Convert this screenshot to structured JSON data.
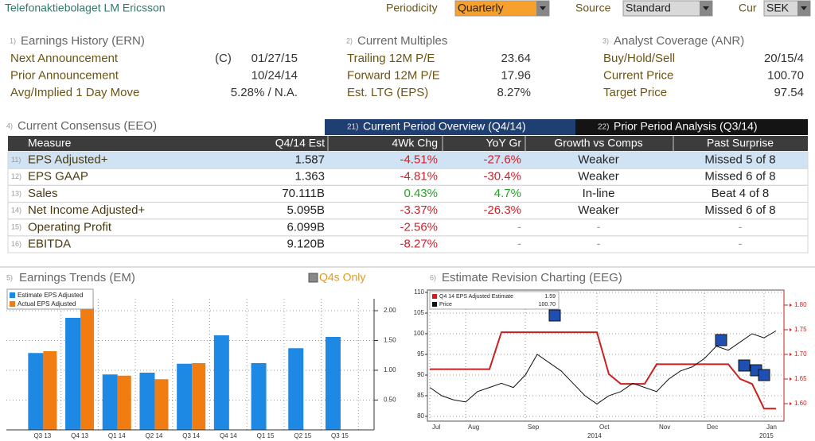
{
  "header": {
    "title": "Telefonaktiebolaget LM Ericsson",
    "controls": [
      {
        "label": "Periodicity",
        "value": "Quarterly"
      },
      {
        "label": "Source",
        "value": "Standard"
      },
      {
        "label": "Cur",
        "value": "SEK"
      }
    ]
  },
  "sections": [
    {
      "number": "1)",
      "title": "Earnings History (ERN)",
      "rows": [
        {
          "label": "Next Announcement",
          "prefix": "(C)",
          "value": "01/27/15"
        },
        {
          "label": "Prior Announcement",
          "value": "10/24/14"
        },
        {
          "label": "Avg/Implied 1 Day Move",
          "value": "5.28% / N.A."
        }
      ]
    },
    {
      "number": "2)",
      "title": "Current Multiples",
      "rows": [
        {
          "label": "Trailing 12M P/E",
          "value": "23.64"
        },
        {
          "label": "Forward 12M P/E",
          "value": "17.96"
        },
        {
          "label": "Est. LTG (EPS)",
          "value": "8.27%"
        }
      ]
    },
    {
      "number": "3)",
      "title": "Analyst Coverage (ANR)",
      "rows": [
        {
          "label": "Buy/Hold/Sell",
          "value": "20/15/4"
        },
        {
          "label": "Current Price",
          "value": "100.70"
        },
        {
          "label": "Target Price",
          "value": "97.54"
        }
      ]
    }
  ],
  "consensus": {
    "number": "4)",
    "title": "Current Consensus (EEO)",
    "tabs": [
      {
        "number": "21)",
        "label": "Current Period Overview (Q4/14)"
      },
      {
        "number": "22)",
        "label": "Prior Period Analysis (Q3/14)"
      }
    ],
    "columns": [
      "Measure",
      "Q4/14 Est",
      "4Wk Chg",
      "YoY Gr",
      "Growth vs Comps",
      "Past Surprise"
    ],
    "rows": [
      {
        "number": "11)",
        "cells": [
          "EPS Adjusted+",
          "1.587",
          "-4.51%",
          "-27.6%",
          "Weaker",
          "Missed 5 of 8"
        ]
      },
      {
        "number": "12)",
        "cells": [
          "EPS GAAP",
          "1.363",
          "-4.81%",
          "-30.4%",
          "Weaker",
          "Missed 6 of 8"
        ]
      },
      {
        "number": "13)",
        "cells": [
          "Sales",
          "70.111B",
          "0.43%",
          "4.7%",
          "In-line",
          "Beat 4 of 8"
        ]
      },
      {
        "number": "14)",
        "cells": [
          "Net Income Adjusted+",
          "5.095B",
          "-3.37%",
          "-26.3%",
          "Weaker",
          "Missed 6 of 8"
        ]
      },
      {
        "number": "15)",
        "cells": [
          "Operating Profit",
          "6.099B",
          "-2.56%",
          "-",
          "-",
          "-"
        ]
      },
      {
        "number": "16)",
        "cells": [
          "EBITDA",
          "9.120B",
          "-8.27%",
          "-",
          "-",
          "-"
        ]
      }
    ]
  },
  "chart_data": [
    {
      "type": "bar",
      "number": "5)",
      "title": "Earnings Trends (EM)",
      "option": "Q4s Only",
      "categories": [
        "Q3 13",
        "Q4 13",
        "Q1 14",
        "Q2 14",
        "Q3 14",
        "Q4 14",
        "Q1 15",
        "Q2 15",
        "Q3 15"
      ],
      "series": [
        {
          "name": "Estimate EPS Adjusted",
          "color": "#1e88e5",
          "values": [
            1.29,
            1.88,
            0.93,
            0.96,
            1.11,
            1.587,
            1.12,
            1.37,
            1.56
          ]
        },
        {
          "name": "Actual EPS Adjusted",
          "color": "#f07c12",
          "values": [
            1.32,
            2.05,
            0.91,
            0.85,
            1.12,
            null,
            null,
            null,
            null
          ]
        }
      ],
      "ylim": [
        0,
        2.2
      ],
      "yticks": [
        {
          "value": 0.5,
          "label": "0.50"
        },
        {
          "value": 1,
          "label": "1.00"
        },
        {
          "value": 1.5,
          "label": "1.50"
        },
        {
          "value": 2,
          "label": "2.00"
        }
      ],
      "grid": true,
      "legend": "top-left"
    },
    {
      "type": "line",
      "number": "6)",
      "title": "Estimate Revision Charting (EEG)",
      "categories": [
        "Jul",
        null,
        null,
        "Aug",
        null,
        null,
        null,
        null,
        "Sep",
        null,
        null,
        null,
        null,
        null,
        "Oct",
        null,
        null,
        null,
        null,
        "Nov",
        null,
        null,
        null,
        "Dec",
        null,
        null,
        null,
        null,
        "Jan",
        null
      ],
      "year_labels": [
        "2014",
        "2015"
      ],
      "series": [
        {
          "name": "Q4 14 EPS Adjusted Estimate",
          "color": "#cc1f1f",
          "axis": "y2",
          "legend_value": "1.59",
          "values": [
            1.67,
            1.67,
            1.67,
            1.67,
            1.67,
            1.67,
            1.745,
            1.745,
            1.745,
            1.745,
            1.745,
            1.745,
            1.745,
            1.745,
            1.745,
            1.66,
            1.64,
            1.64,
            1.64,
            1.68,
            1.68,
            1.68,
            1.68,
            1.68,
            1.68,
            1.68,
            1.65,
            1.64,
            1.59,
            1.59
          ]
        },
        {
          "name": "Price",
          "color": "#111111",
          "legend_value": "100.70",
          "values": [
            87,
            85,
            84,
            83.5,
            86,
            87,
            88,
            87,
            90,
            95,
            93,
            91,
            88,
            85,
            83,
            85,
            86,
            88,
            87,
            86,
            89,
            91,
            92,
            94,
            97,
            96,
            98,
            100,
            99,
            100.7
          ]
        }
      ],
      "ylim": [
        78.85,
        110.58
      ],
      "yticks": [
        80,
        85,
        90,
        95,
        100,
        105,
        110
      ],
      "y2lim": [
        1.5645,
        1.8306
      ],
      "y2ticks": [
        {
          "value": 1.6,
          "label": "1.60"
        },
        {
          "value": 1.65,
          "label": "1.65"
        },
        {
          "value": 1.7,
          "label": "1.70"
        },
        {
          "value": 1.75,
          "label": "1.75"
        },
        {
          "value": 1.8,
          "label": "1.80"
        }
      ],
      "grid": true,
      "legend": "top-left"
    }
  ]
}
